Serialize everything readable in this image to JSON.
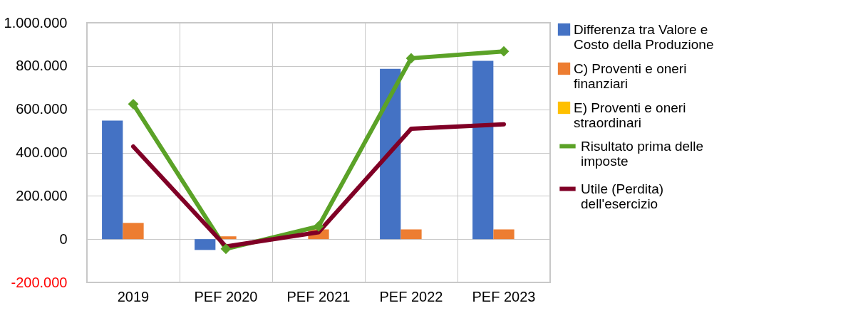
{
  "chart_data": {
    "type": "bar",
    "categories": [
      "2019",
      "PEF 2020",
      "PEF 2021",
      "PEF 2022",
      "PEF 2023"
    ],
    "series": [
      {
        "name": "Differenza tra Valore e Costo della Produzione",
        "color": "#4472c4",
        "values": [
          548000,
          -50000,
          null,
          787000,
          824000
        ]
      },
      {
        "name": "C) Proventi e oneri finanziari",
        "color": "#ed7d31",
        "values": [
          75000,
          13000,
          45000,
          45000,
          45000
        ]
      },
      {
        "name": "E) Proventi e oneri straordinari",
        "color": "#ffc000",
        "values": [
          null,
          null,
          null,
          null,
          null
        ]
      },
      {
        "name": "Risultato prima delle imposte",
        "color": "#5ba227",
        "type": "line",
        "marker": "diamond",
        "values": [
          624000,
          -45000,
          59000,
          836000,
          868000
        ]
      },
      {
        "name": "Utile (Perdita) dell'esercizio",
        "color": "#800026",
        "type": "line",
        "values": [
          428000,
          -34000,
          32000,
          510000,
          531000
        ]
      }
    ],
    "ylim": [
      -200000,
      1000000
    ],
    "yticks": [
      {
        "value": -200000,
        "label": "-200.000"
      },
      {
        "value": 0,
        "label": "0"
      },
      {
        "value": 200000,
        "label": "200.000"
      },
      {
        "value": 400000,
        "label": "400.000"
      },
      {
        "value": 600000,
        "label": "600.000"
      },
      {
        "value": 800000,
        "label": "800.000"
      },
      {
        "value": 1000000,
        "label": "1.000.000"
      }
    ],
    "grid": true,
    "legend": "right"
  }
}
